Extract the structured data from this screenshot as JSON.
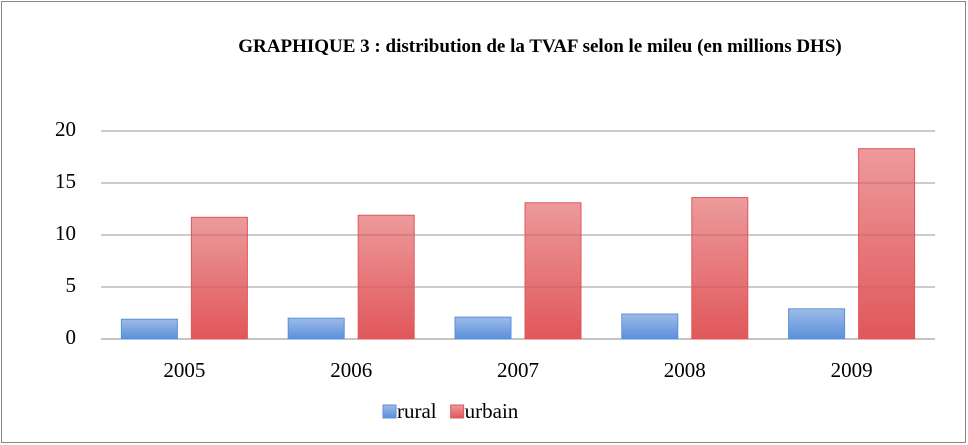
{
  "chart_data": {
    "type": "bar",
    "title": "GRAPHIQUE 3 : distribution de la TVAF selon le mileu (en millions DHS)",
    "categories": [
      "2005",
      "2006",
      "2007",
      "2008",
      "2009"
    ],
    "series": [
      {
        "name": "rural",
        "color": "#5b8fd9",
        "values": [
          1.9,
          2.0,
          2.1,
          2.4,
          2.9
        ]
      },
      {
        "name": "urbain",
        "color": "#e0575a",
        "values": [
          11.7,
          11.9,
          13.1,
          13.6,
          18.3
        ]
      }
    ],
    "ylim": [
      0,
      20
    ],
    "yticks": [
      0,
      5,
      10,
      15,
      20
    ],
    "grid": true,
    "legend": "bottom"
  }
}
